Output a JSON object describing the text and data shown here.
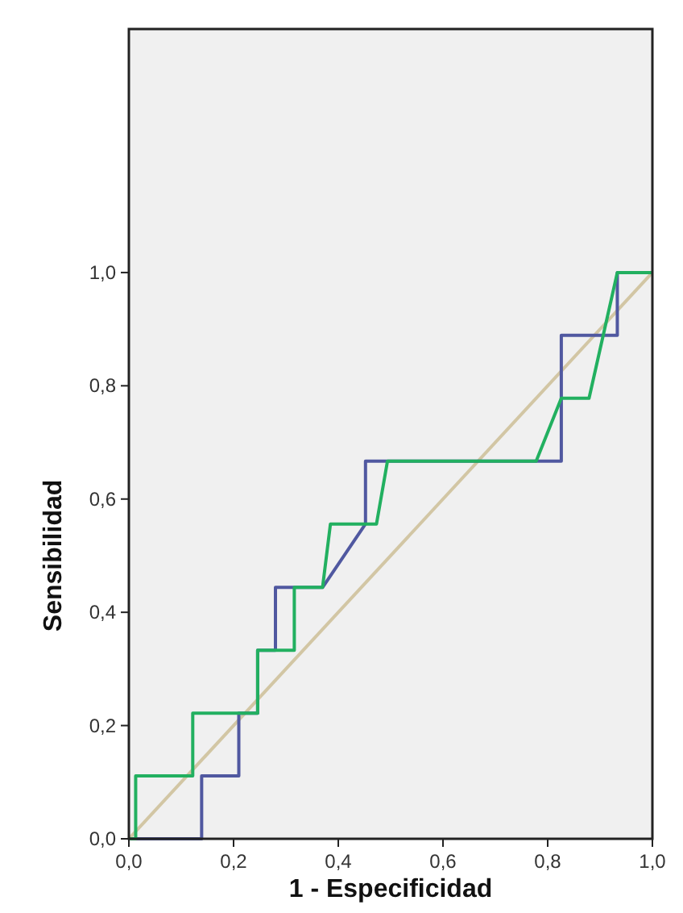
{
  "chart_data": {
    "type": "line",
    "xlabel": "1 - Especificidad",
    "ylabel": "Sensibilidad",
    "xlim": [
      0,
      1
    ],
    "ylim": [
      0,
      1.43
    ],
    "xticks": [
      {
        "value": 0,
        "label": "0,0"
      },
      {
        "value": 0.2,
        "label": "0,2"
      },
      {
        "value": 0.4,
        "label": "0,4"
      },
      {
        "value": 0.6,
        "label": "0,6"
      },
      {
        "value": 0.8,
        "label": "0,8"
      },
      {
        "value": 1,
        "label": "1,0"
      }
    ],
    "yticks": [
      {
        "value": 0,
        "label": "0,0"
      },
      {
        "value": 0.2,
        "label": "0,2"
      },
      {
        "value": 0.4,
        "label": "0,4"
      },
      {
        "value": 0.6,
        "label": "0,6"
      },
      {
        "value": 0.8,
        "label": "0,8"
      },
      {
        "value": 1,
        "label": "1,0"
      }
    ],
    "grid": false,
    "marker": "none",
    "line_style": "solid",
    "series": [
      {
        "color": "#d2c6a4",
        "x": [
          0,
          1
        ],
        "values": [
          0,
          1
        ]
      },
      {
        "color": "#5058a0",
        "x": [
          0,
          0.139,
          0.139,
          0.21,
          0.21,
          0.246,
          0.246,
          0.28,
          0.28,
          0.37,
          0.452,
          0.452,
          0.826,
          0.826,
          0.933,
          0.933,
          1
        ],
        "values": [
          0,
          0,
          0.111,
          0.111,
          0.222,
          0.222,
          0.333,
          0.333,
          0.444,
          0.444,
          0.556,
          0.667,
          0.667,
          0.889,
          0.889,
          1,
          1
        ]
      },
      {
        "color": "#22b060",
        "x": [
          0,
          0.013,
          0.013,
          0.122,
          0.122,
          0.246,
          0.246,
          0.316,
          0.316,
          0.37,
          0.385,
          0.455,
          0.473,
          0.494,
          0.778,
          0.826,
          0.879,
          0.933,
          1
        ],
        "values": [
          0,
          0,
          0.111,
          0.111,
          0.222,
          0.222,
          0.333,
          0.333,
          0.444,
          0.444,
          0.556,
          0.556,
          0.556,
          0.667,
          0.667,
          0.778,
          0.778,
          1,
          1
        ]
      }
    ]
  }
}
